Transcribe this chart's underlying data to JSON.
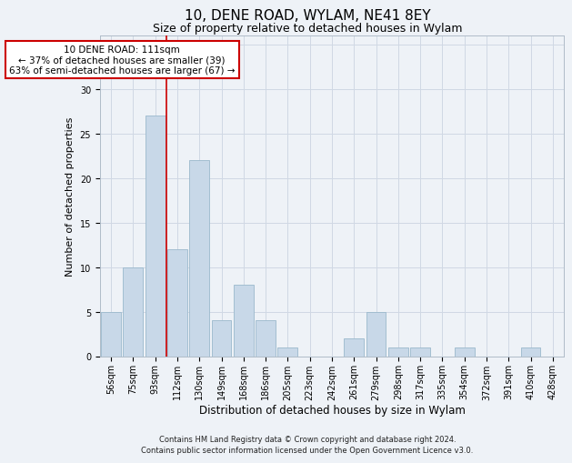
{
  "title1": "10, DENE ROAD, WYLAM, NE41 8EY",
  "title2": "Size of property relative to detached houses in Wylam",
  "xlabel": "Distribution of detached houses by size in Wylam",
  "ylabel": "Number of detached properties",
  "categories": [
    "56sqm",
    "75sqm",
    "93sqm",
    "112sqm",
    "130sqm",
    "149sqm",
    "168sqm",
    "186sqm",
    "205sqm",
    "223sqm",
    "242sqm",
    "261sqm",
    "279sqm",
    "298sqm",
    "317sqm",
    "335sqm",
    "354sqm",
    "372sqm",
    "391sqm",
    "410sqm",
    "428sqm"
  ],
  "values": [
    5,
    10,
    27,
    12,
    22,
    4,
    8,
    4,
    1,
    0,
    0,
    2,
    5,
    1,
    1,
    0,
    1,
    0,
    0,
    1,
    0
  ],
  "bar_color": "#c8d8e8",
  "bar_edge_color": "#9ab8cc",
  "annotation_box_text": "10 DENE ROAD: 111sqm\n← 37% of detached houses are smaller (39)\n63% of semi-detached houses are larger (67) →",
  "box_color": "white",
  "box_edge_color": "#cc0000",
  "vline_color": "#cc0000",
  "ylim": [
    0,
    36
  ],
  "yticks": [
    0,
    5,
    10,
    15,
    20,
    25,
    30,
    35
  ],
  "grid_color": "#d0d8e4",
  "bg_color": "#eef2f7",
  "footer": "Contains HM Land Registry data © Crown copyright and database right 2024.\nContains public sector information licensed under the Open Government Licence v3.0.",
  "title1_fontsize": 11,
  "title2_fontsize": 9,
  "xlabel_fontsize": 8.5,
  "ylabel_fontsize": 8,
  "tick_fontsize": 7,
  "footer_fontsize": 6,
  "annot_fontsize": 7.5
}
